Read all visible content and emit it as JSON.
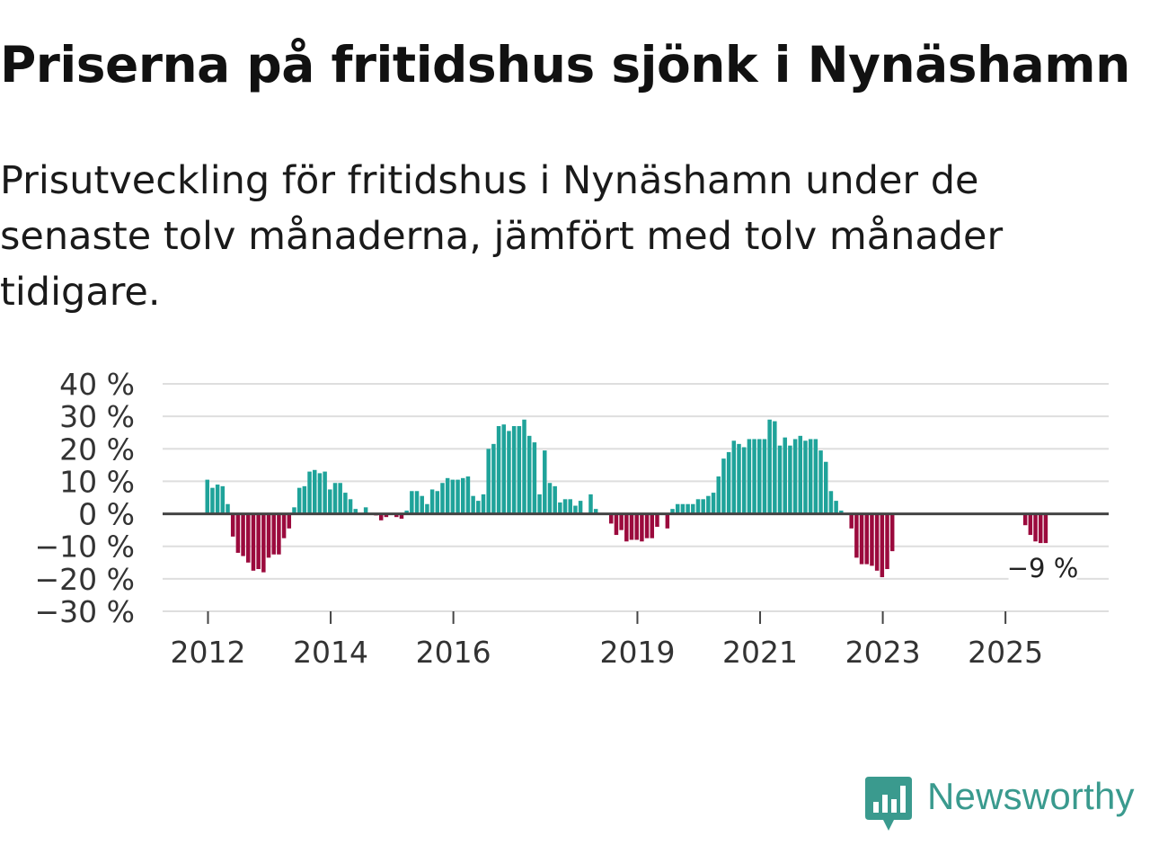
{
  "title": "Priserna på fritidshus sjönk i Nynäshamn",
  "subtitle": "Prisutveckling för fritidshus i Nynäshamn under de senaste tolv månaderna, jämfört med tolv månader tidigare.",
  "brand": {
    "name": "Newsworthy",
    "color": "#3a9a8e",
    "logo_icon": "bar-chart-speech-bubble-icon"
  },
  "chart_data": {
    "type": "bar",
    "series_name": "Prisutveckling",
    "x_start": "2012-01",
    "unit": "%",
    "ylim": [
      -30,
      40
    ],
    "yticks": [
      40,
      30,
      20,
      10,
      0,
      -10,
      -20,
      -30
    ],
    "ytick_labels": [
      "40 %",
      "30 %",
      "20 %",
      "10 %",
      "0 %",
      "−10 %",
      "−20 %",
      "−30 %"
    ],
    "xticks": [
      "2012",
      "2014",
      "2016",
      "2019",
      "2021",
      "2023",
      "2025"
    ],
    "positive_color": "#1fa39a",
    "negative_color": "#9b0a3d",
    "annotation": "−9 %",
    "values": [
      10.5,
      8,
      9,
      8.5,
      3,
      -7,
      -12,
      -13,
      -15,
      -17.5,
      -17,
      -18,
      -13.5,
      -12.5,
      -12.5,
      -7.5,
      -4.5,
      2,
      8,
      8.5,
      13,
      13.5,
      12.5,
      13,
      7.5,
      9.5,
      9.5,
      6.5,
      4.5,
      1.5,
      0,
      2,
      0,
      -0.5,
      -2,
      -1,
      0,
      -1,
      -1.5,
      1,
      7,
      7,
      5.5,
      3,
      7.5,
      7,
      9.5,
      11,
      10.5,
      10.5,
      11,
      11.5,
      5.5,
      4,
      6,
      20,
      21.5,
      27,
      27.5,
      25.5,
      27,
      27,
      29,
      24,
      22,
      6,
      19.5,
      9.5,
      8.5,
      3.5,
      4.5,
      4.5,
      2.5,
      4,
      0,
      6,
      1.5,
      0,
      0,
      -3,
      -6.5,
      -5,
      -8.5,
      -8,
      -8,
      -8.5,
      -7.5,
      -7.5,
      -4,
      0,
      -4.5,
      1.5,
      3,
      3,
      3,
      3,
      4.5,
      4.5,
      5.5,
      6.5,
      11.5,
      17,
      19,
      22.5,
      21.5,
      20.5,
      23,
      23,
      23,
      23,
      29,
      28.5,
      21,
      23.5,
      21,
      23,
      24,
      22.5,
      23,
      23,
      19.5,
      16,
      7,
      4,
      1,
      0,
      -4.5,
      -13.5,
      -15.5,
      -15.5,
      -16,
      -17.5,
      -19.5,
      -17,
      -11.5,
      0,
      0,
      0,
      0,
      0,
      0,
      0,
      0,
      0,
      0,
      0,
      0,
      0,
      0,
      0,
      0,
      0,
      0,
      0,
      0,
      0,
      0,
      0,
      0,
      0,
      -3.5,
      -6.5,
      -8.5,
      -9,
      -9
    ]
  }
}
